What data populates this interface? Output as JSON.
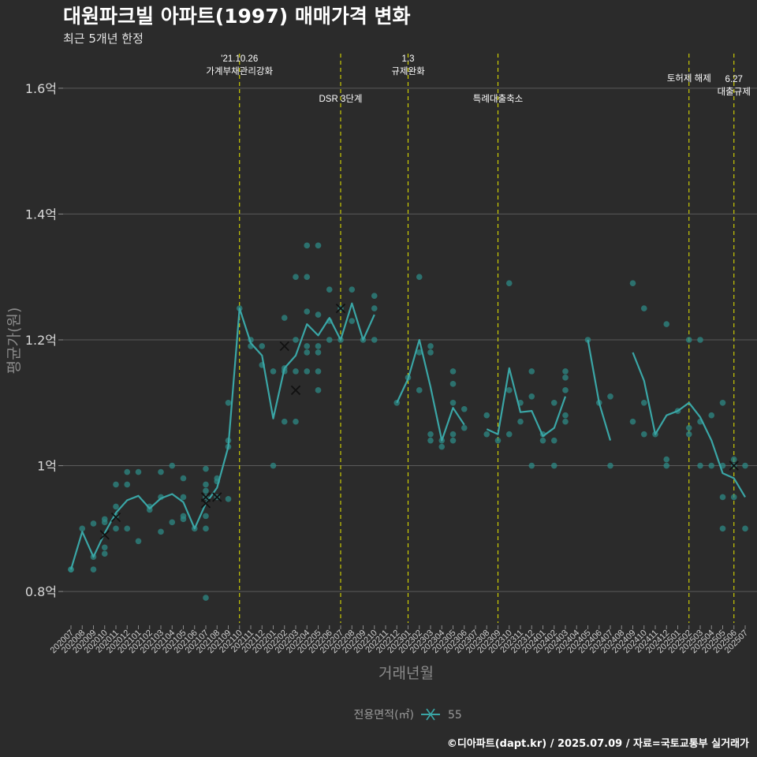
{
  "chart_data": {
    "type": "line",
    "title": "대원파크빌 아파트(1997) 매매가격 변화",
    "subtitle": "최근 5개년 한정",
    "xlabel": "거래년월",
    "ylabel": "평균가(원)",
    "ylim": [
      0.75,
      1.655
    ],
    "yticks": [
      {
        "value": 0.8,
        "label": "0.8억"
      },
      {
        "value": 1.0,
        "label": "1억"
      },
      {
        "value": 1.2,
        "label": "1.2억"
      },
      {
        "value": 1.4,
        "label": "1.4억"
      },
      {
        "value": 1.6,
        "label": "1.6억"
      }
    ],
    "grid": true,
    "categories": [
      "202007",
      "202008",
      "202009",
      "202010",
      "202011",
      "202012",
      "202101",
      "202102",
      "202103",
      "202104",
      "202105",
      "202106",
      "202107",
      "202108",
      "202109",
      "202110",
      "202111",
      "202112",
      "202201",
      "202202",
      "202203",
      "202204",
      "202205",
      "202206",
      "202207",
      "202208",
      "202209",
      "202210",
      "202211",
      "202212",
      "202301",
      "202302",
      "202303",
      "202304",
      "202305",
      "202306",
      "202307",
      "202308",
      "202309",
      "202310",
      "202311",
      "202312",
      "202401",
      "202402",
      "202403",
      "202404",
      "202405",
      "202406",
      "202407",
      "202408",
      "202409",
      "202410",
      "202411",
      "202412",
      "202501",
      "202502",
      "202503",
      "202504",
      "202505",
      "202506",
      "202507"
    ],
    "series": [
      {
        "name": "55",
        "color": "#3aa6a6",
        "line": [
          0.835,
          0.895,
          0.855,
          0.893,
          0.925,
          0.945,
          0.952,
          0.932,
          0.948,
          0.955,
          0.942,
          0.9,
          0.94,
          0.965,
          1.03,
          1.25,
          1.195,
          1.175,
          1.075,
          1.155,
          1.175,
          1.225,
          1.207,
          1.235,
          1.2,
          1.258,
          1.2,
          1.24,
          null,
          1.1,
          1.138,
          1.2,
          1.125,
          1.04,
          1.092,
          1.065,
          null,
          1.058,
          1.05,
          1.155,
          1.085,
          1.087,
          1.047,
          1.06,
          1.11,
          null,
          1.2,
          1.1,
          1.04,
          null,
          1.18,
          1.135,
          1.05,
          1.08,
          1.087,
          1.1,
          1.077,
          1.04,
          0.988,
          0.98,
          0.95
        ],
        "points": [
          [
            0,
            0.835
          ],
          [
            0,
            0.835
          ],
          [
            1,
            0.9
          ],
          [
            2,
            0.855
          ],
          [
            2,
            0.835
          ],
          [
            2,
            0.908
          ],
          [
            3,
            0.91
          ],
          [
            3,
            0.87
          ],
          [
            3,
            0.86
          ],
          [
            3,
            0.915
          ],
          [
            4,
            0.92
          ],
          [
            4,
            0.935
          ],
          [
            4,
            0.97
          ],
          [
            4,
            0.9
          ],
          [
            5,
            0.99
          ],
          [
            5,
            0.9
          ],
          [
            5,
            0.97
          ],
          [
            6,
            0.88
          ],
          [
            6,
            0.99
          ],
          [
            7,
            0.93
          ],
          [
            7,
            0.935
          ],
          [
            8,
            0.895
          ],
          [
            8,
            0.95
          ],
          [
            8,
            0.99
          ],
          [
            9,
            0.91
          ],
          [
            9,
            1.0
          ],
          [
            10,
            0.92
          ],
          [
            10,
            0.95
          ],
          [
            10,
            0.915
          ],
          [
            10,
            0.98
          ],
          [
            11,
            0.9
          ],
          [
            12,
            0.79
          ],
          [
            12,
            0.9
          ],
          [
            12,
            0.92
          ],
          [
            12,
            0.95
          ],
          [
            12,
            0.97
          ],
          [
            12,
            0.995
          ],
          [
            12,
            0.96
          ],
          [
            13,
            0.95
          ],
          [
            13,
            0.98
          ],
          [
            13,
            0.975
          ],
          [
            14,
            1.03
          ],
          [
            14,
            1.1
          ],
          [
            14,
            1.04
          ],
          [
            14,
            0.947
          ],
          [
            15,
            1.25
          ],
          [
            16,
            1.2
          ],
          [
            16,
            1.19
          ],
          [
            17,
            1.19
          ],
          [
            17,
            1.16
          ],
          [
            18,
            1.0
          ],
          [
            18,
            1.15
          ],
          [
            19,
            1.235
          ],
          [
            19,
            1.155
          ],
          [
            19,
            1.07
          ],
          [
            19,
            1.15
          ],
          [
            20,
            1.3
          ],
          [
            20,
            1.2
          ],
          [
            20,
            1.15
          ],
          [
            20,
            1.07
          ],
          [
            21,
            1.35
          ],
          [
            21,
            1.3
          ],
          [
            21,
            1.245
          ],
          [
            21,
            1.19
          ],
          [
            21,
            1.18
          ],
          [
            21,
            1.15
          ],
          [
            22,
            1.35
          ],
          [
            22,
            1.24
          ],
          [
            22,
            1.19
          ],
          [
            22,
            1.18
          ],
          [
            22,
            1.15
          ],
          [
            22,
            1.12
          ],
          [
            23,
            1.28
          ],
          [
            23,
            1.23
          ],
          [
            23,
            1.2
          ],
          [
            24,
            1.25
          ],
          [
            24,
            1.2
          ],
          [
            25,
            1.28
          ],
          [
            25,
            1.23
          ],
          [
            26,
            1.2
          ],
          [
            27,
            1.27
          ],
          [
            27,
            1.25
          ],
          [
            27,
            1.2
          ],
          [
            29,
            1.1
          ],
          [
            30,
            1.14
          ],
          [
            31,
            1.3
          ],
          [
            31,
            1.18
          ],
          [
            31,
            1.12
          ],
          [
            32,
            1.19
          ],
          [
            32,
            1.18
          ],
          [
            32,
            1.05
          ],
          [
            32,
            1.04
          ],
          [
            33,
            1.03
          ],
          [
            33,
            1.04
          ],
          [
            34,
            1.15
          ],
          [
            34,
            1.13
          ],
          [
            34,
            1.1
          ],
          [
            34,
            1.05
          ],
          [
            34,
            1.04
          ],
          [
            35,
            1.09
          ],
          [
            35,
            1.06
          ],
          [
            37,
            1.08
          ],
          [
            37,
            1.05
          ],
          [
            38,
            1.04
          ],
          [
            39,
            1.29
          ],
          [
            39,
            1.12
          ],
          [
            39,
            1.05
          ],
          [
            40,
            1.1
          ],
          [
            40,
            1.07
          ],
          [
            41,
            1.15
          ],
          [
            41,
            1.11
          ],
          [
            41,
            1.0
          ],
          [
            42,
            1.05
          ],
          [
            42,
            1.04
          ],
          [
            43,
            1.1
          ],
          [
            43,
            1.04
          ],
          [
            43,
            1.0
          ],
          [
            44,
            1.15
          ],
          [
            44,
            1.14
          ],
          [
            44,
            1.12
          ],
          [
            44,
            1.08
          ],
          [
            44,
            1.07
          ],
          [
            46,
            1.2
          ],
          [
            47,
            1.1
          ],
          [
            48,
            1.11
          ],
          [
            48,
            1.0
          ],
          [
            50,
            1.29
          ],
          [
            50,
            1.07
          ],
          [
            51,
            1.25
          ],
          [
            51,
            1.1
          ],
          [
            51,
            1.05
          ],
          [
            52,
            1.05
          ],
          [
            53,
            1.225
          ],
          [
            53,
            1.01
          ],
          [
            53,
            1.0
          ],
          [
            54,
            1.087
          ],
          [
            55,
            1.2
          ],
          [
            55,
            1.06
          ],
          [
            55,
            1.05
          ],
          [
            56,
            1.2
          ],
          [
            56,
            1.07
          ],
          [
            56,
            1.0
          ],
          [
            57,
            1.08
          ],
          [
            57,
            1.0
          ],
          [
            58,
            1.1
          ],
          [
            58,
            1.0
          ],
          [
            58,
            0.95
          ],
          [
            58,
            0.9
          ],
          [
            59,
            1.01
          ],
          [
            59,
            1.0
          ],
          [
            59,
            0.95
          ],
          [
            60,
            1.0
          ],
          [
            60,
            0.9
          ]
        ],
        "highlight_points": [
          [
            3,
            0.89
          ],
          [
            4,
            0.918
          ],
          [
            12,
            0.94
          ],
          [
            12,
            0.95
          ],
          [
            13,
            0.95
          ],
          [
            19,
            1.19
          ],
          [
            20,
            1.12
          ],
          [
            24,
            1.25
          ],
          [
            59,
            1.0
          ]
        ]
      }
    ],
    "annotations": [
      {
        "index": 15,
        "lines": [
          "'21.10.26",
          "가계부채관리강화"
        ],
        "level": "high"
      },
      {
        "index": 24,
        "lines": [
          "DSR 3단계"
        ],
        "level": "low"
      },
      {
        "index": 30,
        "lines": [
          "1.3",
          "규제완화"
        ],
        "level": "high"
      },
      {
        "index": 38,
        "lines": [
          "특례대출축소"
        ],
        "level": "low"
      },
      {
        "index": 55,
        "lines": [
          "토허제 해제"
        ],
        "level": "mid"
      },
      {
        "index": 59,
        "lines": [
          "6.27",
          "대출규제"
        ],
        "level": "right"
      }
    ],
    "legend": {
      "title": "전용면적(㎡)",
      "label": "55",
      "position": "bottom"
    },
    "caption": "©디아파트(dapt.kr) / 2025.07.09 / 자료=국토교통부 실거래가"
  },
  "colors": {
    "background": "#2b2b2b",
    "grid": "#5a5a5a",
    "series": "#3aa6a6",
    "point": "#2e8a85",
    "vline": "#d9d900"
  }
}
